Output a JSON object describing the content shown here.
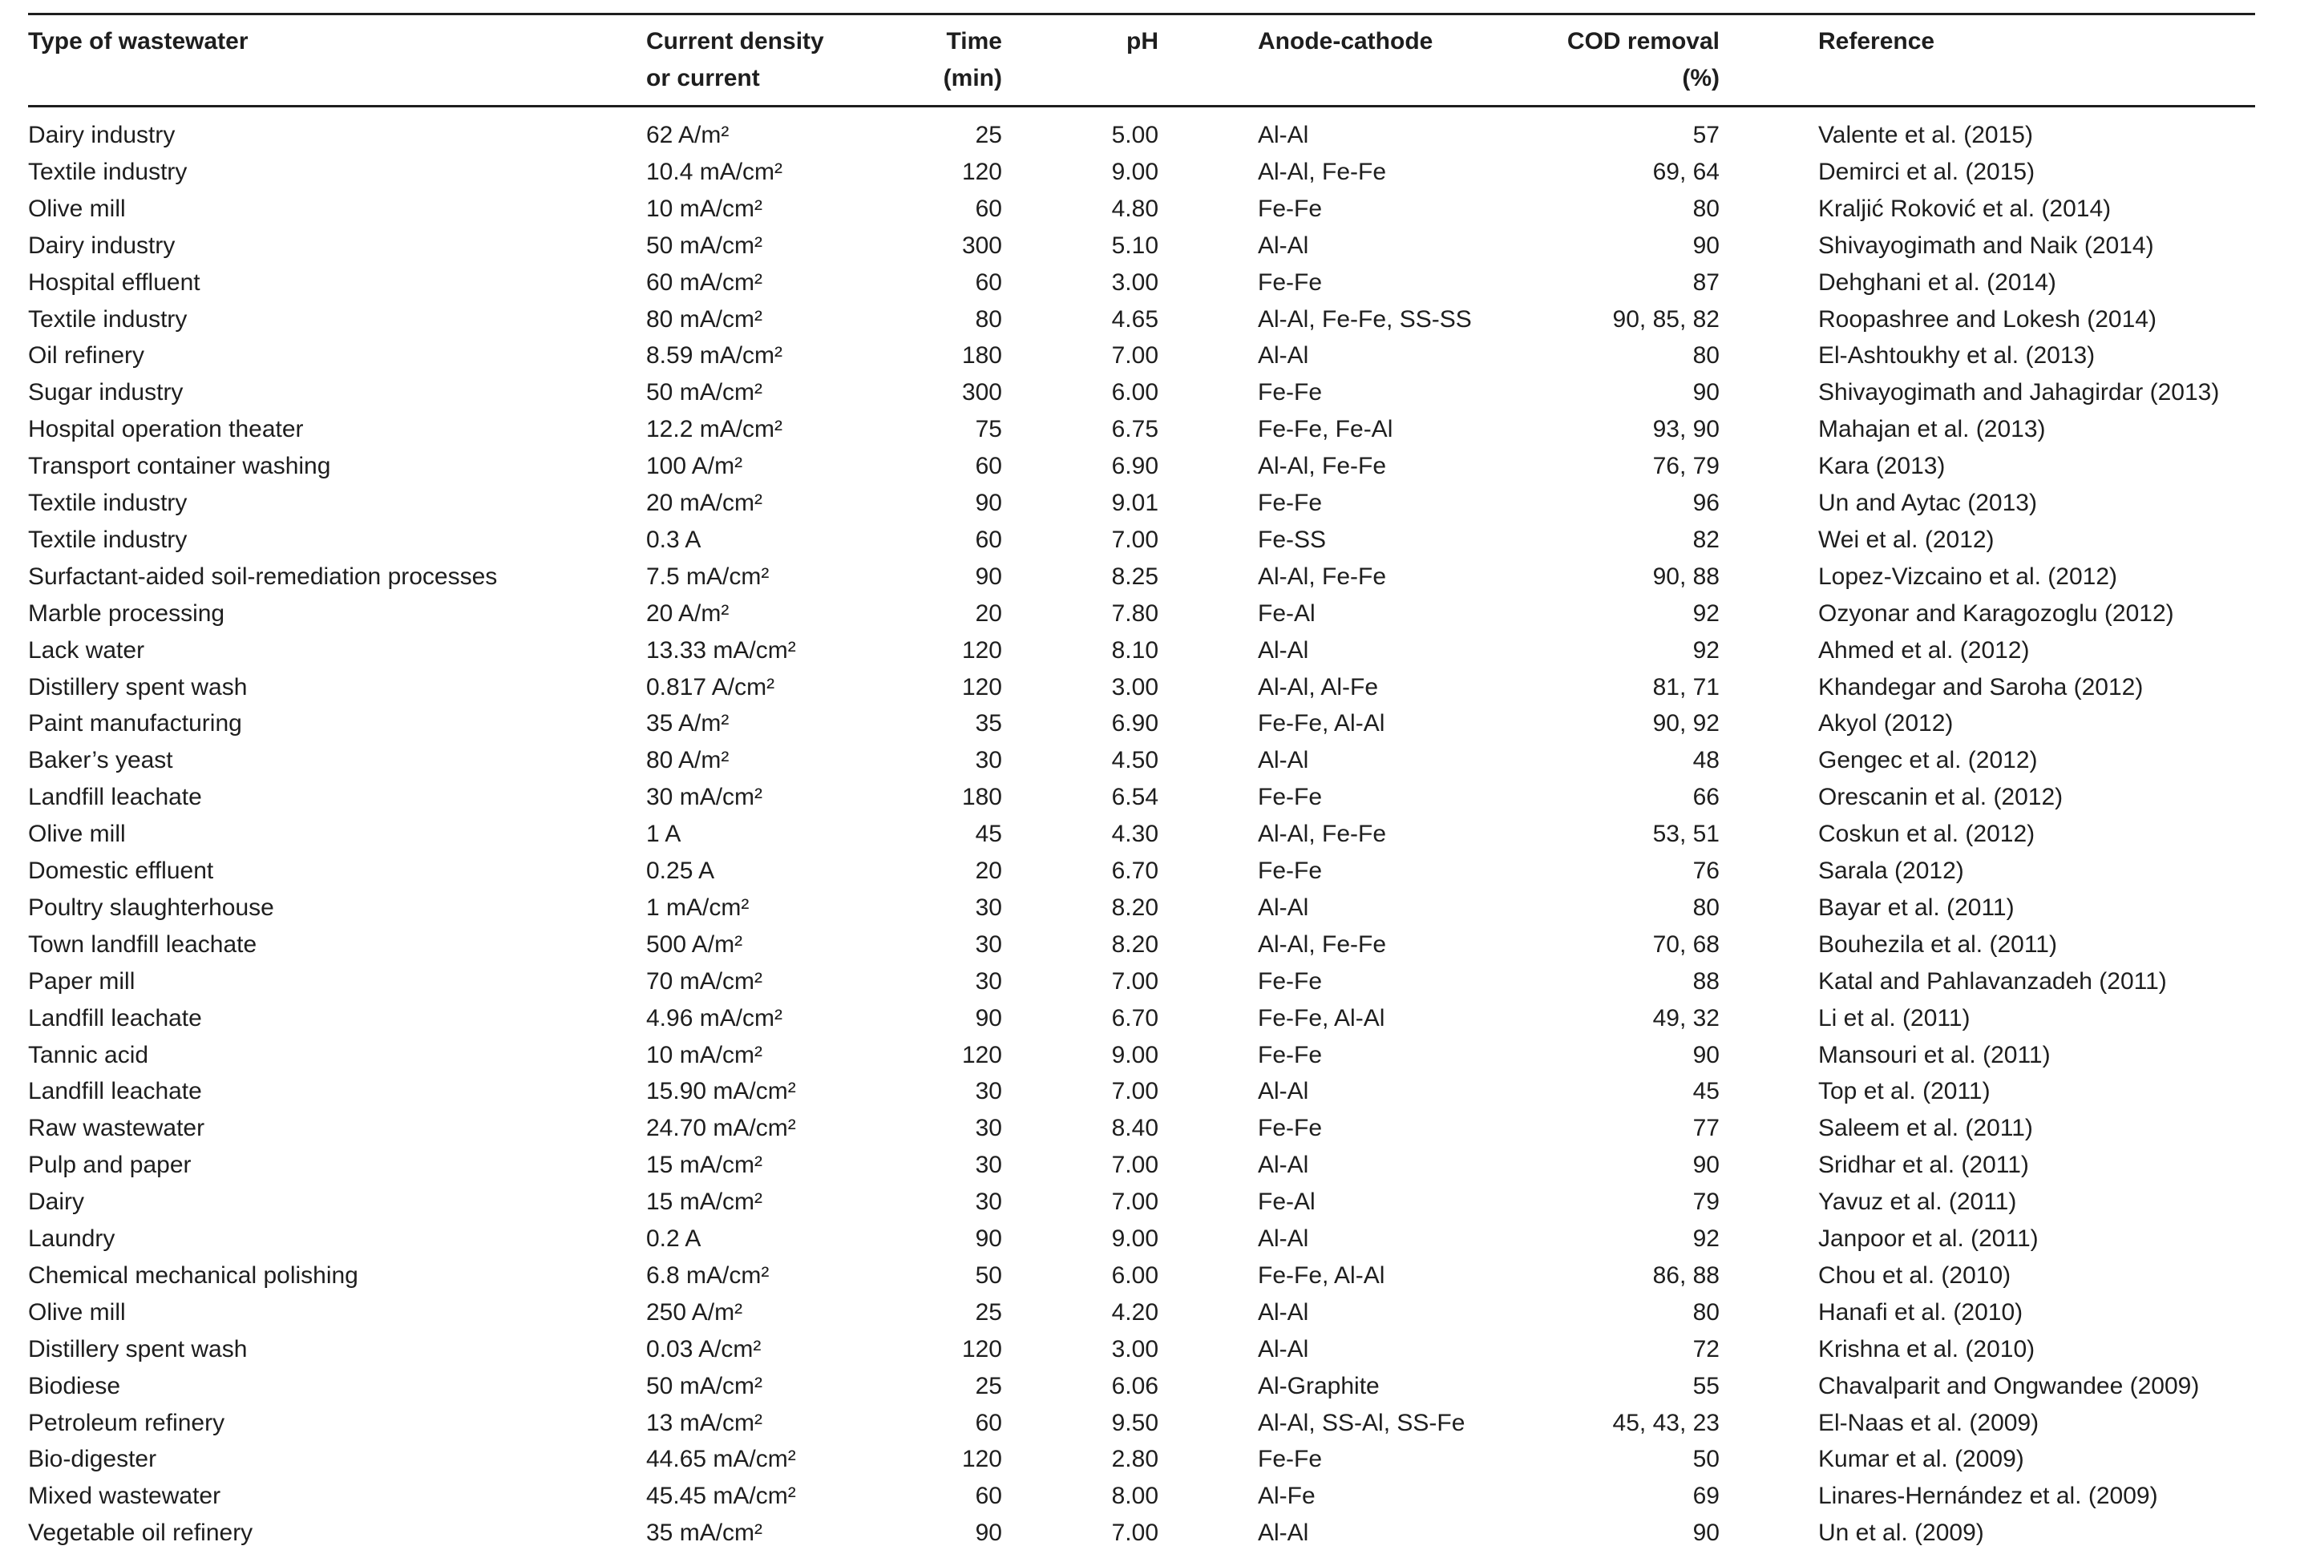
{
  "table": {
    "headers": [
      [
        "Type of wastewater"
      ],
      [
        "Current density",
        "or current"
      ],
      [
        "Time",
        "(min)"
      ],
      [
        "pH"
      ],
      [
        "Anode-cathode"
      ],
      [
        "COD removal",
        "(%)"
      ],
      [
        "Reference"
      ]
    ],
    "rows": [
      [
        "Dairy industry",
        "62 A/m²",
        "25",
        "5.00",
        "Al-Al",
        "57",
        "Valente et al. (2015)"
      ],
      [
        "Textile industry",
        "10.4 mA/cm²",
        "120",
        "9.00",
        "Al-Al, Fe-Fe",
        "69, 64",
        "Demirci et al. (2015)"
      ],
      [
        "Olive mill",
        "10 mA/cm²",
        "60",
        "4.80",
        "Fe-Fe",
        "80",
        "Kraljić Roković et al. (2014)"
      ],
      [
        "Dairy industry",
        "50 mA/cm²",
        "300",
        "5.10",
        "Al-Al",
        "90",
        "Shivayogimath and Naik (2014)"
      ],
      [
        "Hospital effluent",
        "60 mA/cm²",
        "60",
        "3.00",
        "Fe-Fe",
        "87",
        "Dehghani et al. (2014)"
      ],
      [
        "Textile industry",
        "80 mA/cm²",
        "80",
        "4.65",
        "Al-Al, Fe-Fe, SS-SS",
        "90, 85, 82",
        "Roopashree and Lokesh (2014)"
      ],
      [
        "Oil refinery",
        "8.59 mA/cm²",
        "180",
        "7.00",
        "Al-Al",
        "80",
        "El-Ashtoukhy et al. (2013)"
      ],
      [
        "Sugar industry",
        "50 mA/cm²",
        "300",
        "6.00",
        "Fe-Fe",
        "90",
        "Shivayogimath and Jahagirdar (2013)"
      ],
      [
        "Hospital operation theater",
        "12.2 mA/cm²",
        "75",
        "6.75",
        "Fe-Fe, Fe-Al",
        "93, 90",
        "Mahajan et al. (2013)"
      ],
      [
        "Transport container washing",
        "100 A/m²",
        "60",
        "6.90",
        "Al-Al, Fe-Fe",
        "76, 79",
        "Kara (2013)"
      ],
      [
        "Textile industry",
        "20 mA/cm²",
        "90",
        "9.01",
        "Fe-Fe",
        "96",
        "Un and Aytac (2013)"
      ],
      [
        "Textile industry",
        "0.3 A",
        "60",
        "7.00",
        "Fe-SS",
        "82",
        "Wei et al. (2012)"
      ],
      [
        "Surfactant-aided soil-remediation processes",
        "7.5 mA/cm²",
        "90",
        "8.25",
        "Al-Al, Fe-Fe",
        "90, 88",
        "Lopez-Vizcaino et al. (2012)"
      ],
      [
        "Marble processing",
        "20 A/m²",
        "20",
        "7.80",
        "Fe-Al",
        "92",
        "Ozyonar and Karagozoglu (2012)"
      ],
      [
        "Lack water",
        "13.33 mA/cm²",
        "120",
        "8.10",
        "Al-Al",
        "92",
        "Ahmed et al. (2012)"
      ],
      [
        "Distillery spent wash",
        "0.817 A/cm²",
        "120",
        "3.00",
        "Al-Al, Al-Fe",
        "81, 71",
        "Khandegar and Saroha (2012)"
      ],
      [
        "Paint manufacturing",
        "35 A/m²",
        "35",
        "6.90",
        "Fe-Fe, Al-Al",
        "90, 92",
        "Akyol (2012)"
      ],
      [
        "Baker’s yeast",
        "80 A/m²",
        "30",
        "4.50",
        "Al-Al",
        "48",
        "Gengec et al. (2012)"
      ],
      [
        "Landfill leachate",
        "30 mA/cm²",
        "180",
        "6.54",
        "Fe-Fe",
        "66",
        "Orescanin et al. (2012)"
      ],
      [
        "Olive mill",
        "1 A",
        "45",
        "4.30",
        "Al-Al, Fe-Fe",
        "53, 51",
        "Coskun et al. (2012)"
      ],
      [
        "Domestic effluent",
        "0.25 A",
        "20",
        "6.70",
        "Fe-Fe",
        "76",
        "Sarala (2012)"
      ],
      [
        "Poultry slaughterhouse",
        "1 mA/cm²",
        "30",
        "8.20",
        "Al-Al",
        "80",
        "Bayar et al. (2011)"
      ],
      [
        "Town landfill leachate",
        "500 A/m²",
        "30",
        "8.20",
        "Al-Al, Fe-Fe",
        "70, 68",
        "Bouhezila et al. (2011)"
      ],
      [
        "Paper mill",
        "70 mA/cm²",
        "30",
        "7.00",
        "Fe-Fe",
        "88",
        "Katal and Pahlavanzadeh (2011)"
      ],
      [
        "Landfill leachate",
        "4.96 mA/cm²",
        "90",
        "6.70",
        "Fe-Fe, Al-Al",
        "49, 32",
        "Li et al. (2011)"
      ],
      [
        "Tannic acid",
        "10 mA/cm²",
        "120",
        "9.00",
        "Fe-Fe",
        "90",
        "Mansouri et al. (2011)"
      ],
      [
        "Landfill leachate",
        "15.90 mA/cm²",
        "30",
        "7.00",
        "Al-Al",
        "45",
        "Top et al. (2011)"
      ],
      [
        "Raw wastewater",
        "24.70 mA/cm²",
        "30",
        "8.40",
        "Fe-Fe",
        "77",
        "Saleem et al. (2011)"
      ],
      [
        "Pulp and paper",
        "15 mA/cm²",
        "30",
        "7.00",
        "Al-Al",
        "90",
        "Sridhar et al. (2011)"
      ],
      [
        "Dairy",
        "15 mA/cm²",
        "30",
        "7.00",
        "Fe-Al",
        "79",
        "Yavuz et al. (2011)"
      ],
      [
        "Laundry",
        "0.2 A",
        "90",
        "9.00",
        "Al-Al",
        "92",
        "Janpoor et al. (2011)"
      ],
      [
        "Chemical mechanical polishing",
        "6.8 mA/cm²",
        "50",
        "6.00",
        "Fe-Fe, Al-Al",
        "86, 88",
        "Chou et al. (2010)"
      ],
      [
        "Olive mill",
        "250 A/m²",
        "25",
        "4.20",
        "Al-Al",
        "80",
        "Hanafi et al. (2010)"
      ],
      [
        "Distillery spent wash",
        "0.03 A/cm²",
        "120",
        "3.00",
        "Al-Al",
        "72",
        "Krishna et al. (2010)"
      ],
      [
        "Biodiese",
        "50 mA/cm²",
        "25",
        "6.06",
        "Al-Graphite",
        "55",
        "Chavalparit and Ongwandee (2009)"
      ],
      [
        "Petroleum refinery",
        "13 mA/cm²",
        "60",
        "9.50",
        "Al-Al, SS-Al, SS-Fe",
        "45, 43, 23",
        "El-Naas et al. (2009)"
      ],
      [
        "Bio-digester",
        "44.65 mA/cm²",
        "120",
        "2.80",
        "Fe-Fe",
        "50",
        "Kumar et al. (2009)"
      ],
      [
        "Mixed wastewater",
        "45.45 mA/cm²",
        "60",
        "8.00",
        "Al-Fe",
        "69",
        "Linares-Hernández et al. (2009)"
      ],
      [
        "Vegetable oil refinery",
        "35 mA/cm²",
        "90",
        "7.00",
        "Al-Al",
        "90",
        "Un et al. (2009)"
      ]
    ]
  }
}
